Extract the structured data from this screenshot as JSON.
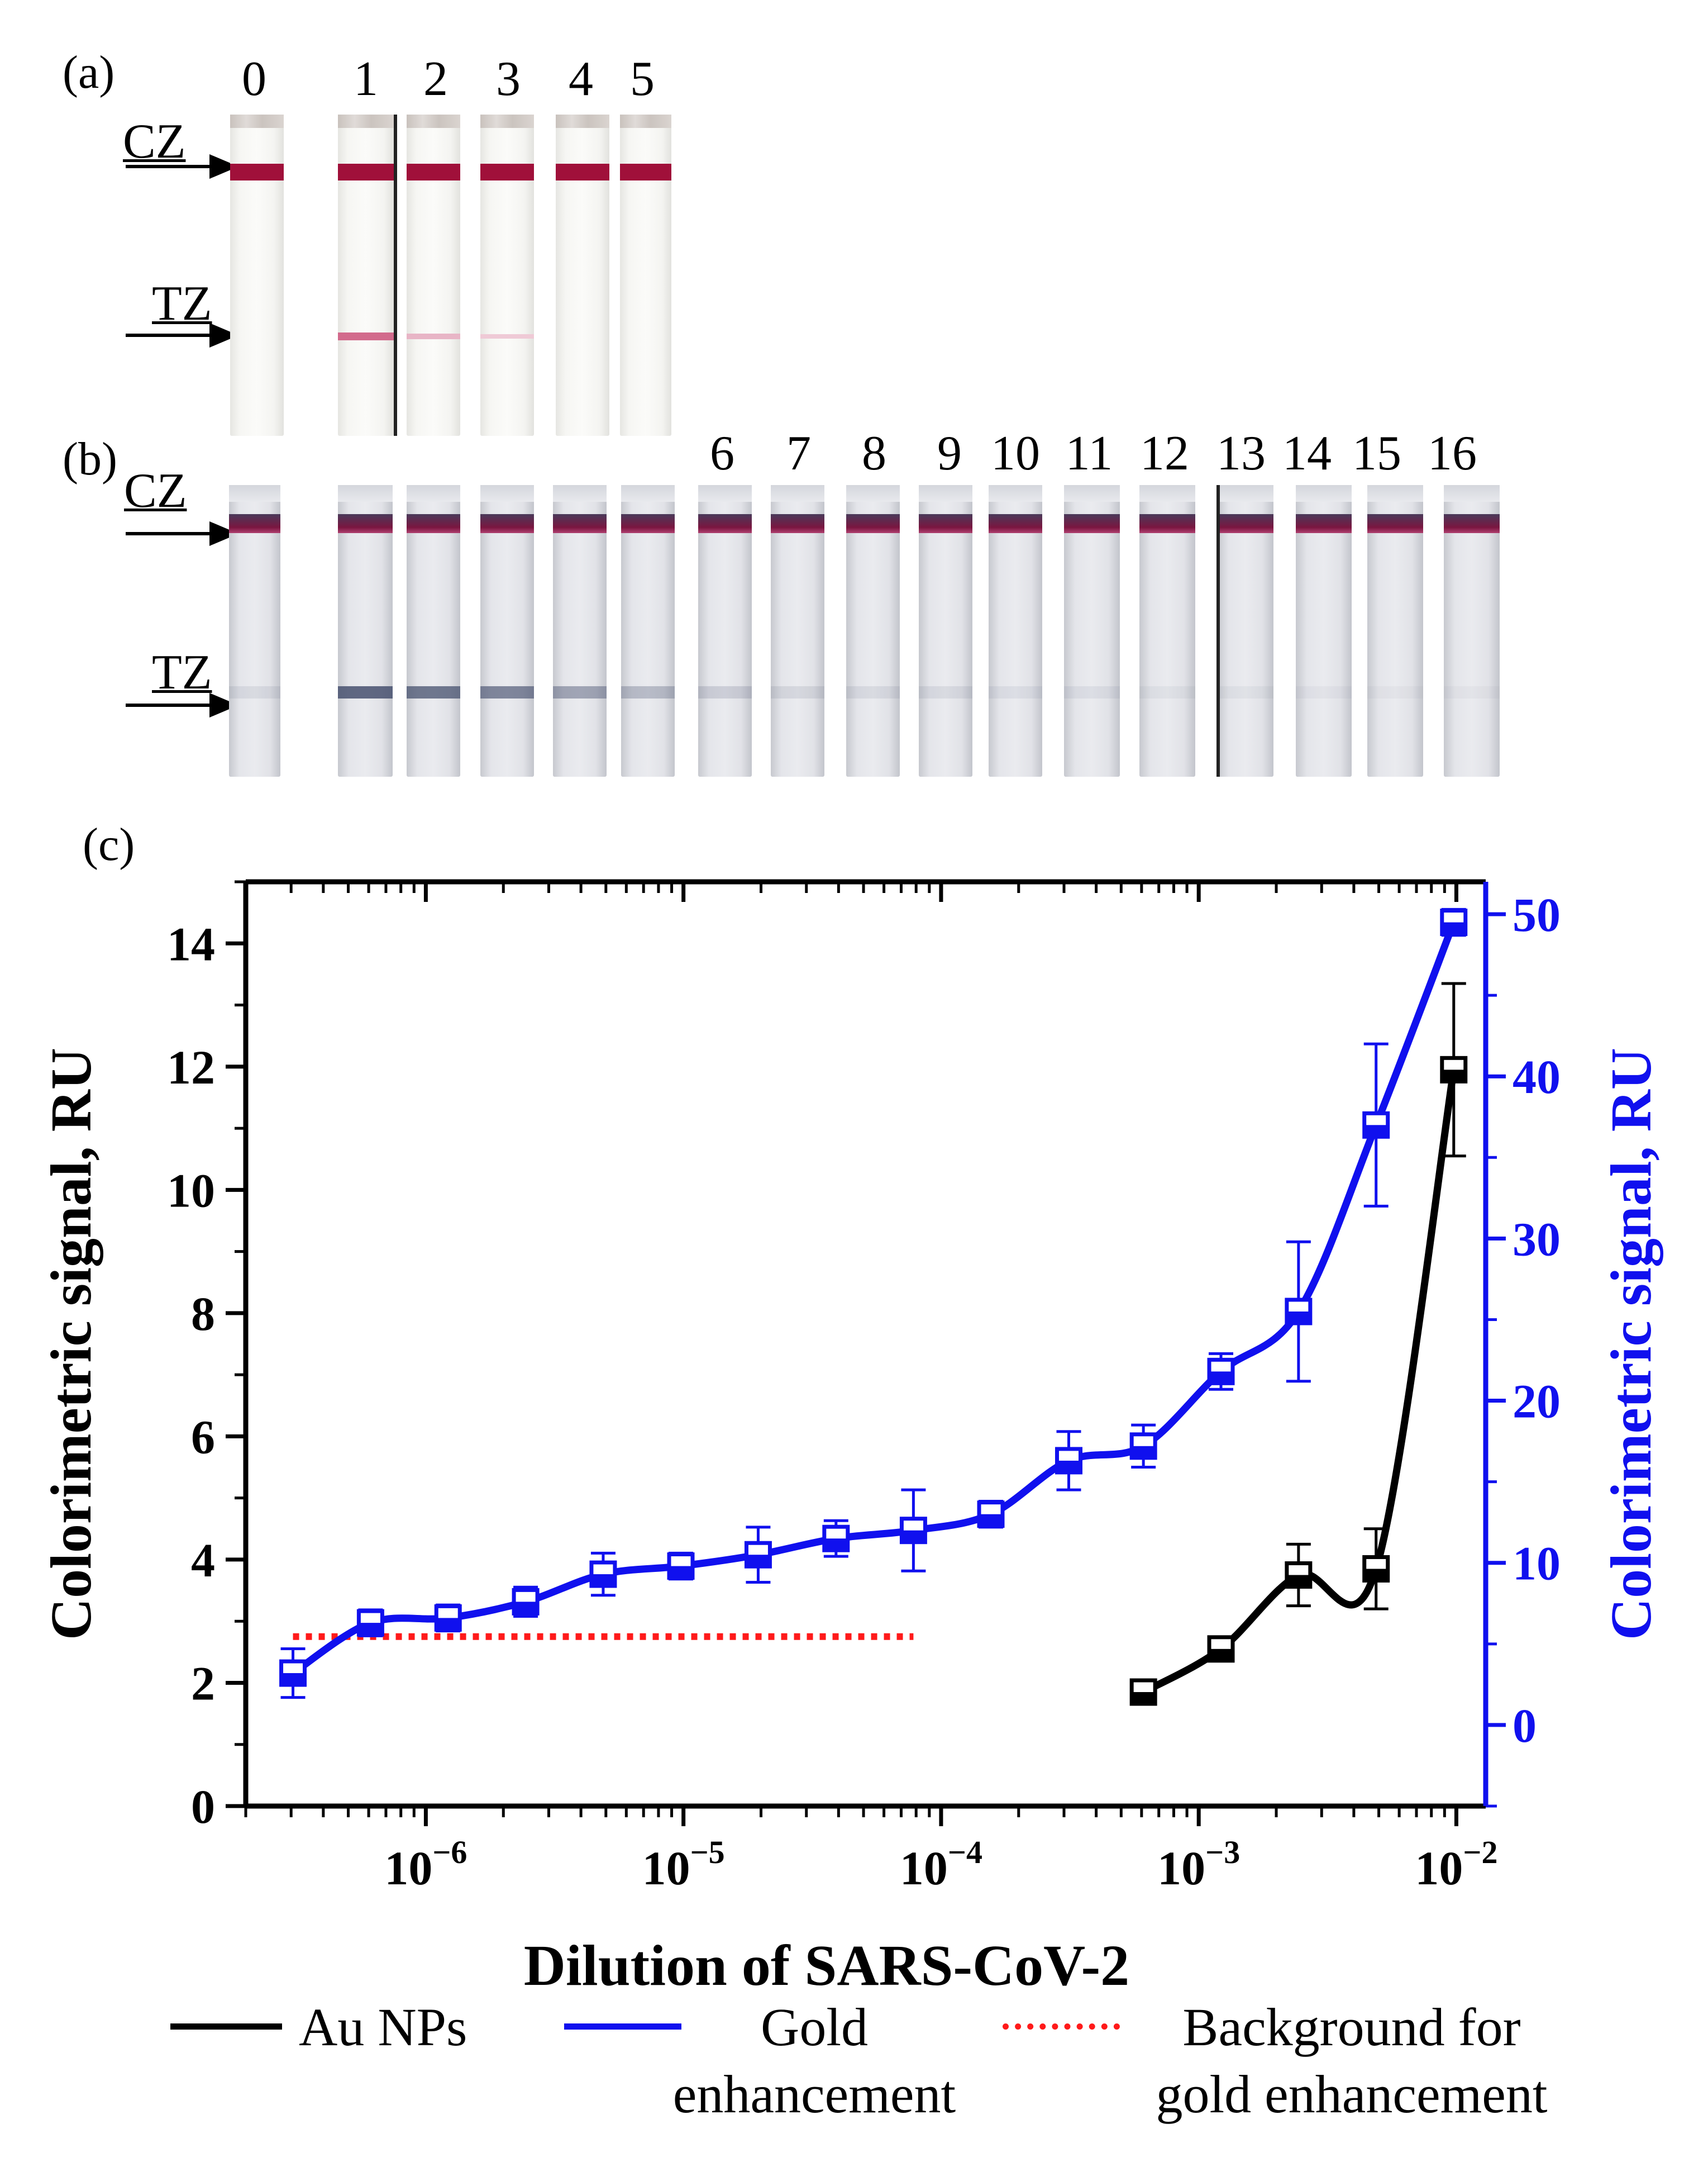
{
  "panel_labels": {
    "a": "(a)",
    "b": "(b)",
    "c": "(c)"
  },
  "zone_labels": {
    "control": "CZ",
    "test": "TZ"
  },
  "panel_a": {
    "strip_numbers": [
      "0",
      "1",
      "2",
      "3",
      "4",
      "5"
    ]
  },
  "panel_b": {
    "strip_numbers": [
      "6",
      "7",
      "8",
      "9",
      "10",
      "11",
      "12",
      "13",
      "14",
      "15",
      "16"
    ]
  },
  "colors": {
    "au_nps": "#000000",
    "gold_enhancement": "#1010ee",
    "background": "#ff1a1a",
    "control_band_a": "#a0103a",
    "control_band_b": "#7a1640"
  },
  "chart_data": {
    "type": "line",
    "xscale": "log",
    "xlabel": "Dilution of SARS-CoV-2",
    "ylabel_left": "Colorimetric signal, RU",
    "ylabel_right": "Colorimetric signal, RU",
    "xlim": [
      2e-07,
      0.013
    ],
    "ylim_left": [
      0,
      15
    ],
    "ylim_right": [
      -5,
      52
    ],
    "x_ticks": [
      1e-06,
      1e-05,
      0.0001,
      0.001,
      0.01
    ],
    "x_tick_labels": [
      {
        "base": "10",
        "exp": "−6"
      },
      {
        "base": "10",
        "exp": "−5"
      },
      {
        "base": "10",
        "exp": "−4"
      },
      {
        "base": "10",
        "exp": "−3"
      },
      {
        "base": "10",
        "exp": "−2"
      }
    ],
    "y_left_ticks": [
      "0",
      "2",
      "4",
      "6",
      "8",
      "10",
      "12",
      "14"
    ],
    "y_right_ticks": [
      "0",
      "10",
      "20",
      "30",
      "40",
      "50"
    ],
    "series": [
      {
        "name": "Au NPs",
        "axis": "left",
        "x": [
          0.00061,
          0.00122,
          0.00244,
          0.00488,
          0.00977
        ],
        "y": [
          1.85,
          2.55,
          3.75,
          3.85,
          11.95
        ],
        "err": [
          0.2,
          0.15,
          0.5,
          0.65,
          1.4
        ]
      },
      {
        "name": "Gold enhancement",
        "axis": "right",
        "x": [
          3.05e-07,
          6.1e-07,
          1.22e-06,
          2.44e-06,
          4.88e-06,
          9.77e-06,
          1.95e-05,
          3.91e-05,
          7.81e-05,
          0.000156,
          0.000313,
          0.00061,
          0.00122,
          0.00244,
          0.00488,
          0.00977
        ],
        "y": [
          3.2,
          6.3,
          6.6,
          7.6,
          9.3,
          9.8,
          10.5,
          11.5,
          12.0,
          13.0,
          16.3,
          17.2,
          21.8,
          25.5,
          37.0,
          49.5
        ],
        "err": [
          1.5,
          0.8,
          0.8,
          0.9,
          1.3,
          0.8,
          1.7,
          1.1,
          2.5,
          0.8,
          1.8,
          1.3,
          1.1,
          4.3,
          5.0,
          0.8
        ]
      },
      {
        "name": "Background for gold enhancement",
        "axis": "left",
        "style": "dotted",
        "x": [
          3.05e-07,
          7.81e-05
        ],
        "y": [
          2.75,
          2.75
        ]
      }
    ],
    "legend": {
      "placement": "bottom",
      "entries": [
        {
          "label_lines": [
            "Au NPs"
          ]
        },
        {
          "label_lines": [
            "Gold",
            "enhancement"
          ]
        },
        {
          "label_lines": [
            "Background for",
            "gold enhancement"
          ]
        }
      ]
    }
  }
}
